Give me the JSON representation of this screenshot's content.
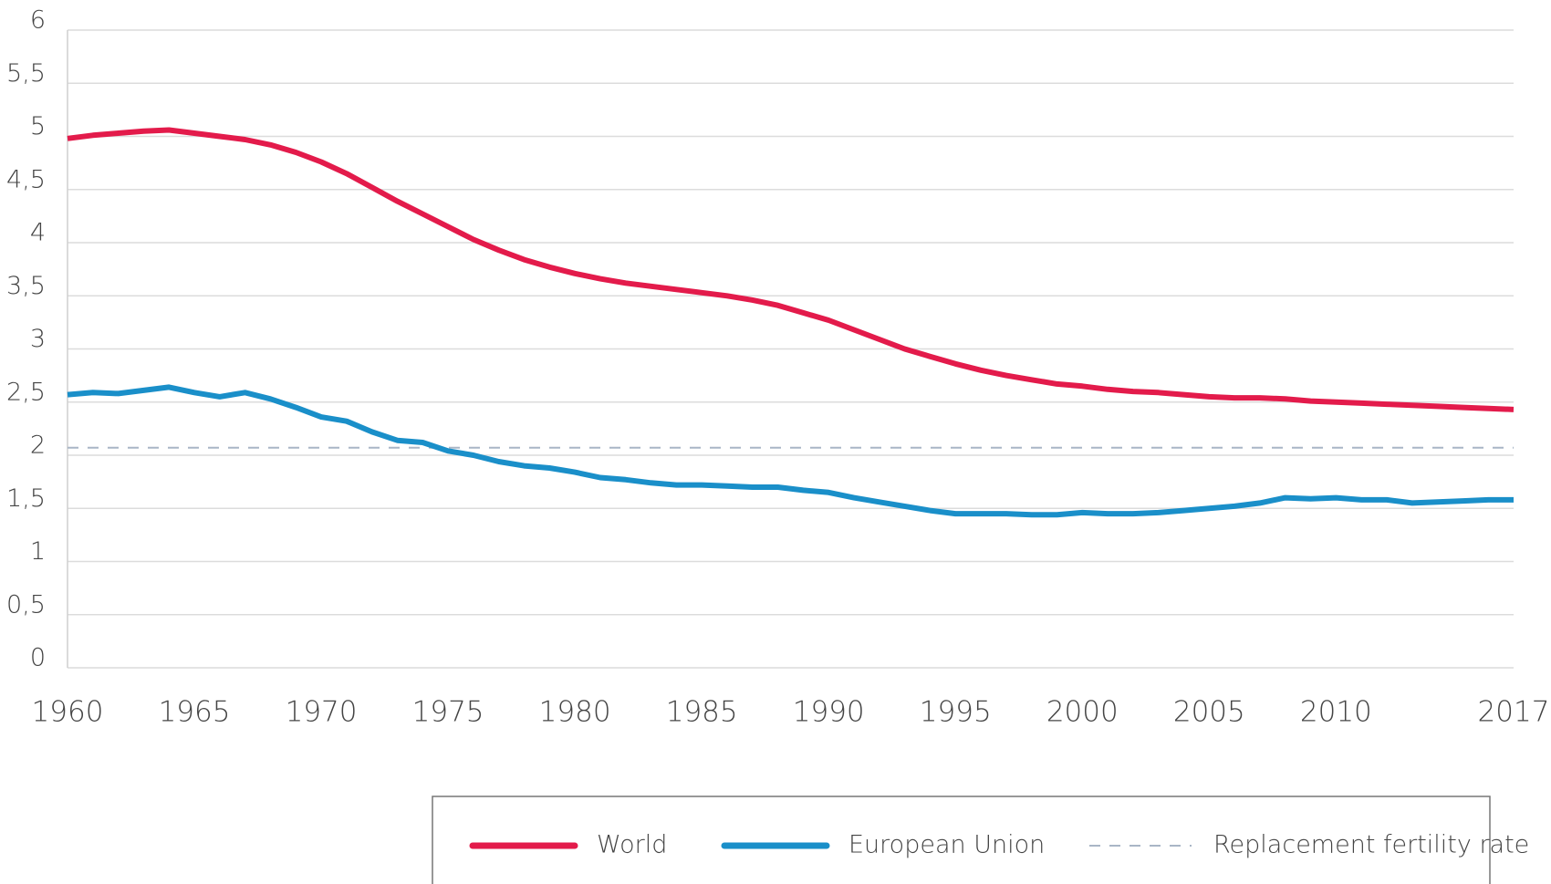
{
  "chart_data": {
    "type": "line",
    "x": [
      1960,
      1961,
      1962,
      1963,
      1964,
      1965,
      1966,
      1967,
      1968,
      1969,
      1970,
      1971,
      1972,
      1973,
      1974,
      1975,
      1976,
      1977,
      1978,
      1979,
      1980,
      1981,
      1982,
      1983,
      1984,
      1985,
      1986,
      1987,
      1988,
      1989,
      1990,
      1991,
      1992,
      1993,
      1994,
      1995,
      1996,
      1997,
      1998,
      1999,
      2000,
      2001,
      2002,
      2003,
      2004,
      2005,
      2006,
      2007,
      2008,
      2009,
      2010,
      2011,
      2012,
      2013,
      2014,
      2015,
      2016,
      2017
    ],
    "series": [
      {
        "name": "World",
        "color": "#e31b4b",
        "values": [
          4.98,
          5.01,
          5.03,
          5.05,
          5.06,
          5.03,
          5.0,
          4.97,
          4.92,
          4.85,
          4.76,
          4.65,
          4.52,
          4.39,
          4.27,
          4.15,
          4.03,
          3.93,
          3.84,
          3.77,
          3.71,
          3.66,
          3.62,
          3.59,
          3.56,
          3.53,
          3.5,
          3.46,
          3.41,
          3.34,
          3.27,
          3.18,
          3.09,
          3.0,
          2.93,
          2.86,
          2.8,
          2.75,
          2.71,
          2.67,
          2.65,
          2.62,
          2.6,
          2.59,
          2.57,
          2.55,
          2.54,
          2.54,
          2.53,
          2.51,
          2.5,
          2.49,
          2.48,
          2.47,
          2.46,
          2.45,
          2.44,
          2.43
        ]
      },
      {
        "name": "European Union",
        "color": "#1a8fc9",
        "values": [
          2.57,
          2.59,
          2.58,
          2.61,
          2.64,
          2.59,
          2.55,
          2.59,
          2.53,
          2.45,
          2.36,
          2.32,
          2.22,
          2.14,
          2.12,
          2.04,
          2.0,
          1.94,
          1.9,
          1.88,
          1.84,
          1.79,
          1.77,
          1.74,
          1.72,
          1.72,
          1.71,
          1.7,
          1.7,
          1.67,
          1.65,
          1.6,
          1.56,
          1.52,
          1.48,
          1.45,
          1.45,
          1.45,
          1.44,
          1.44,
          1.46,
          1.45,
          1.45,
          1.46,
          1.48,
          1.5,
          1.52,
          1.55,
          1.6,
          1.59,
          1.6,
          1.58,
          1.58,
          1.55,
          1.56,
          1.57,
          1.58,
          1.58
        ]
      },
      {
        "name": "Replacement fertility rate",
        "color": "#a9b6c6",
        "dashed": true,
        "values": [
          2.07,
          2.07,
          2.07,
          2.07,
          2.07,
          2.07,
          2.07,
          2.07,
          2.07,
          2.07,
          2.07,
          2.07,
          2.07,
          2.07,
          2.07,
          2.07,
          2.07,
          2.07,
          2.07,
          2.07,
          2.07,
          2.07,
          2.07,
          2.07,
          2.07,
          2.07,
          2.07,
          2.07,
          2.07,
          2.07,
          2.07,
          2.07,
          2.07,
          2.07,
          2.07,
          2.07,
          2.07,
          2.07,
          2.07,
          2.07,
          2.07,
          2.07,
          2.07,
          2.07,
          2.07,
          2.07,
          2.07,
          2.07,
          2.07,
          2.07,
          2.07,
          2.07,
          2.07,
          2.07,
          2.07,
          2.07,
          2.07,
          2.07
        ]
      }
    ],
    "xlim": [
      1960,
      2017
    ],
    "xticks": [
      1960,
      1965,
      1970,
      1975,
      1980,
      1985,
      1990,
      1995,
      2000,
      2005,
      2010,
      2017
    ],
    "ylim": [
      0,
      6
    ],
    "yticks": [
      0,
      {
        "value": 0.5,
        "label": "0,5"
      },
      1,
      {
        "value": 1.5,
        "label": "1,5"
      },
      2,
      {
        "value": 2.5,
        "label": "2,5"
      },
      3,
      {
        "value": 3.5,
        "label": "3,5"
      },
      4,
      {
        "value": 4.5,
        "label": "4,5"
      },
      5,
      {
        "value": 5.5,
        "label": "5,5"
      },
      6
    ],
    "grid": true,
    "legend": "bottom"
  }
}
